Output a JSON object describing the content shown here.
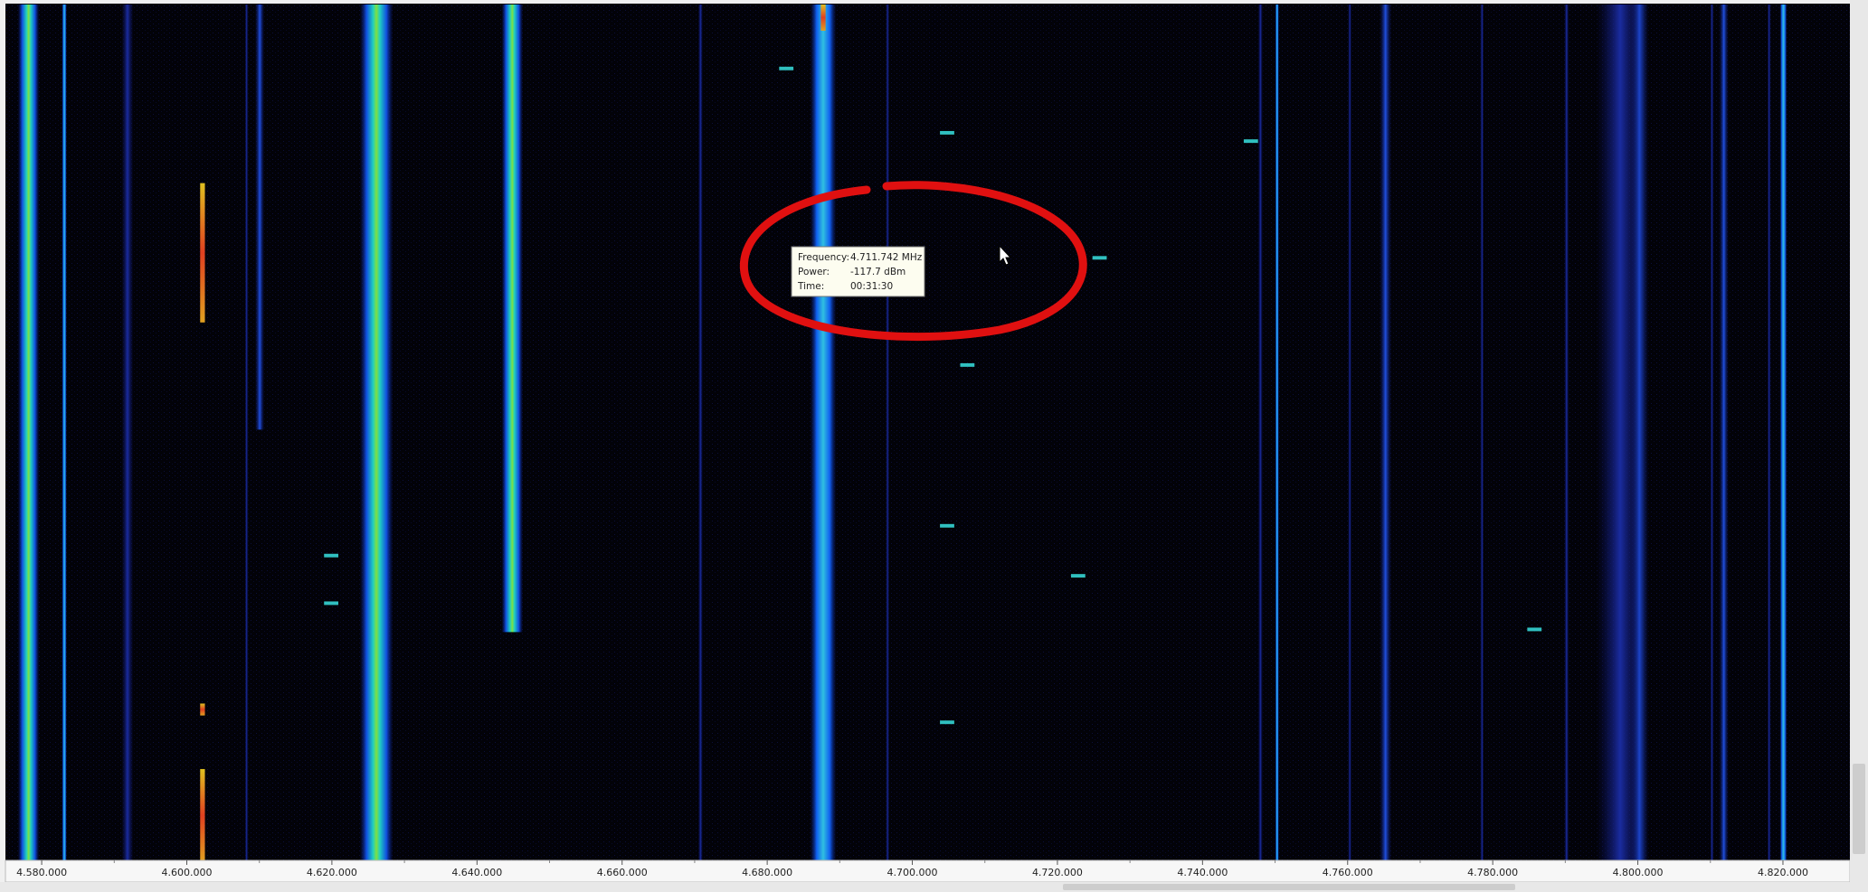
{
  "axis": {
    "ticks": [
      "4.580.000",
      "4.600.000",
      "4.620.000",
      "4.640.000",
      "4.660.000",
      "4.680.000",
      "4.700.000",
      "4.720.000",
      "4.740.000",
      "4.760.000",
      "4.780.000",
      "4.800.000",
      "4.820.000"
    ]
  },
  "tooltip": {
    "rows": [
      [
        "Frequency:",
        "4.711.742 MHz"
      ],
      [
        "Power:",
        "-117.7 dBm"
      ],
      [
        "Time:",
        "00:31:30"
      ]
    ]
  }
}
